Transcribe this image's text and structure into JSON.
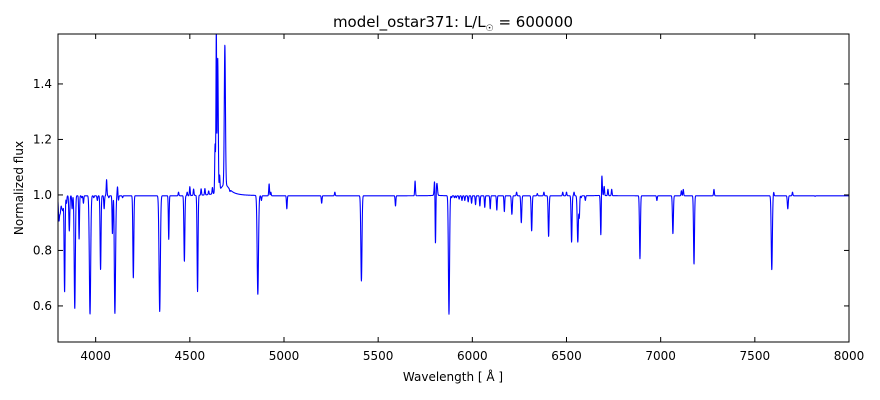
{
  "chart_data": {
    "type": "line",
    "title": "model_ostar371: L/L",
    "title_subscript": "☉",
    "title_suffix": " = 600000",
    "xlabel": "Wavelength [ Å ]",
    "ylabel": "Normalized flux",
    "xlim": [
      3800,
      8000
    ],
    "ylim": [
      0.47,
      1.58
    ],
    "xticks": [
      4000,
      4500,
      5000,
      5500,
      6000,
      6500,
      7000,
      7500,
      8000
    ],
    "yticks": [
      0.6,
      0.8,
      1.0,
      1.2,
      1.4
    ],
    "ytick_labels": [
      "0.6",
      "0.8",
      "1.0",
      "1.2",
      "1.4"
    ],
    "grid": false,
    "series": [
      {
        "color": "#0000ff",
        "continuum": 0.997,
        "lines": [
          [
            3805,
            0.91,
            3
          ],
          [
            3812,
            0.94,
            3
          ],
          [
            3820,
            0.96,
            3
          ],
          [
            3826,
            0.95,
            3
          ],
          [
            3835,
            0.65,
            2.5
          ],
          [
            3845,
            0.97,
            2
          ],
          [
            3860,
            0.87,
            2.5
          ],
          [
            3875,
            0.95,
            2
          ],
          [
            3889,
            0.59,
            3
          ],
          [
            3912,
            0.84,
            2
          ],
          [
            3926,
            0.99,
            2
          ],
          [
            3935,
            0.97,
            2
          ],
          [
            3970,
            0.57,
            3.5
          ],
          [
            3990,
            0.99,
            2
          ],
          [
            4009,
            0.98,
            2
          ],
          [
            4026,
            0.73,
            2.5
          ],
          [
            4045,
            0.95,
            2
          ],
          [
            4058,
            1.055,
            2
          ],
          [
            4070,
            0.99,
            2
          ],
          [
            4089,
            0.86,
            2
          ],
          [
            4097,
            1.06,
            2
          ],
          [
            4102,
            0.57,
            3.5
          ],
          [
            4116,
            1.03,
            2
          ],
          [
            4121,
            0.98,
            2
          ],
          [
            4143,
            0.99,
            2
          ],
          [
            4200,
            0.7,
            2.5
          ],
          [
            4340,
            0.58,
            3.5
          ],
          [
            4388,
            0.84,
            2
          ],
          [
            4440,
            1.01,
            2
          ],
          [
            4471,
            0.76,
            2.5
          ],
          [
            4486,
            1.01,
            2
          ],
          [
            4500,
            1.03,
            2
          ],
          [
            4520,
            1.02,
            2
          ],
          [
            4541,
            0.65,
            2.5
          ],
          [
            4560,
            1.02,
            2
          ],
          [
            4580,
            1.02,
            2
          ],
          [
            4600,
            1.01,
            2
          ],
          [
            4620,
            1.02,
            2
          ],
          [
            4634,
            1.17,
            2
          ],
          [
            4640,
            1.31,
            2
          ],
          [
            4641,
            1.3,
            1.5
          ],
          [
            4647,
            1.37,
            2
          ],
          [
            4650,
            1.25,
            2
          ],
          [
            4658,
            1.05,
            2
          ],
          [
            4686,
            1.5,
            3
          ],
          [
            4713,
            0.99,
            2
          ],
          [
            4861,
            0.64,
            3.5
          ],
          [
            4880,
            0.98,
            2
          ],
          [
            4921,
            1.04,
            2
          ],
          [
            4930,
            1.01,
            2
          ],
          [
            5015,
            0.95,
            2
          ],
          [
            5200,
            0.97,
            2
          ],
          [
            5270,
            1.01,
            2
          ],
          [
            5411,
            0.69,
            3
          ],
          [
            5592,
            0.96,
            2
          ],
          [
            5696,
            1.05,
            2
          ],
          [
            5801,
            1.07,
            3
          ],
          [
            5804,
            0.78,
            2
          ],
          [
            5812,
            1.04,
            3
          ],
          [
            5876,
            0.57,
            3
          ],
          [
            5890,
            0.99,
            2
          ],
          [
            5905,
            0.99,
            2
          ],
          [
            5915,
            0.99,
            2
          ],
          [
            5930,
            0.985,
            2
          ],
          [
            5945,
            0.98,
            2
          ],
          [
            5960,
            0.98,
            2
          ],
          [
            5978,
            0.975,
            2
          ],
          [
            5996,
            0.97,
            2
          ],
          [
            6017,
            0.965,
            2
          ],
          [
            6040,
            0.96,
            2
          ],
          [
            6066,
            0.955,
            2
          ],
          [
            6095,
            0.95,
            2
          ],
          [
            6130,
            0.945,
            2
          ],
          [
            6170,
            0.94,
            2
          ],
          [
            6210,
            0.93,
            2.5
          ],
          [
            6235,
            1.01,
            2
          ],
          [
            6260,
            0.9,
            2.5
          ],
          [
            6315,
            0.87,
            2.5
          ],
          [
            6345,
            1.005,
            2
          ],
          [
            6380,
            1.01,
            2
          ],
          [
            6405,
            0.85,
            2.5
          ],
          [
            6480,
            1.01,
            2
          ],
          [
            6500,
            1.01,
            2
          ],
          [
            6527,
            0.83,
            2.5
          ],
          [
            6540,
            1.01,
            2
          ],
          [
            6560,
            0.83,
            3
          ],
          [
            6568,
            0.92,
            2
          ],
          [
            6578,
            0.99,
            2
          ],
          [
            6600,
            0.98,
            2
          ],
          [
            6683,
            0.79,
            2.5
          ],
          [
            6686,
            1.12,
            3
          ],
          [
            6700,
            1.03,
            2
          ],
          [
            6720,
            1.02,
            2
          ],
          [
            6740,
            1.02,
            2
          ],
          [
            6890,
            0.77,
            2.5
          ],
          [
            6980,
            0.98,
            2
          ],
          [
            7065,
            0.86,
            2.5
          ],
          [
            7110,
            1.015,
            2
          ],
          [
            7120,
            1.02,
            2
          ],
          [
            7177,
            0.75,
            2.5
          ],
          [
            7283,
            1.02,
            2
          ],
          [
            7590,
            0.73,
            3
          ],
          [
            7600,
            1.01,
            2
          ],
          [
            7675,
            0.95,
            2.5
          ],
          [
            7700,
            1.01,
            2
          ],
          [
            7820,
            0.995,
            2
          ]
        ],
        "emission_bumps": [
          [
            4686,
            1.02,
            30
          ],
          [
            5805,
            0.045,
            25
          ],
          [
            6683,
            0.03,
            30
          ]
        ]
      }
    ]
  }
}
